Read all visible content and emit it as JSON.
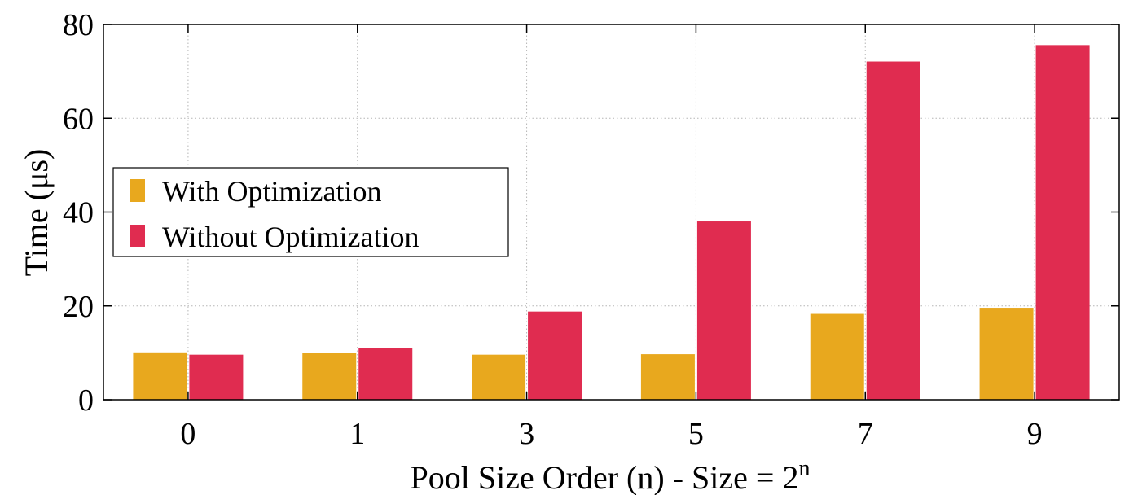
{
  "chart_data": {
    "type": "bar",
    "title": "",
    "xlabel": "Pool Size Order (n) - Size = 2",
    "xlabel_superscript": "n",
    "ylabel": "Time (μs)",
    "categories": [
      "0",
      "1",
      "3",
      "5",
      "7",
      "9"
    ],
    "series": [
      {
        "name": "With Optimization",
        "color": "#e8a81e",
        "values": [
          10.1,
          9.9,
          9.6,
          9.7,
          18.3,
          19.6
        ]
      },
      {
        "name": "Without Optimization",
        "color": "#e02c50",
        "values": [
          9.6,
          11.1,
          18.8,
          38.0,
          72.1,
          75.6
        ]
      }
    ],
    "ylim": [
      0,
      80
    ],
    "yticks": [
      "0",
      "20",
      "40",
      "60",
      "80"
    ],
    "grid": true,
    "legend_position": "left"
  }
}
